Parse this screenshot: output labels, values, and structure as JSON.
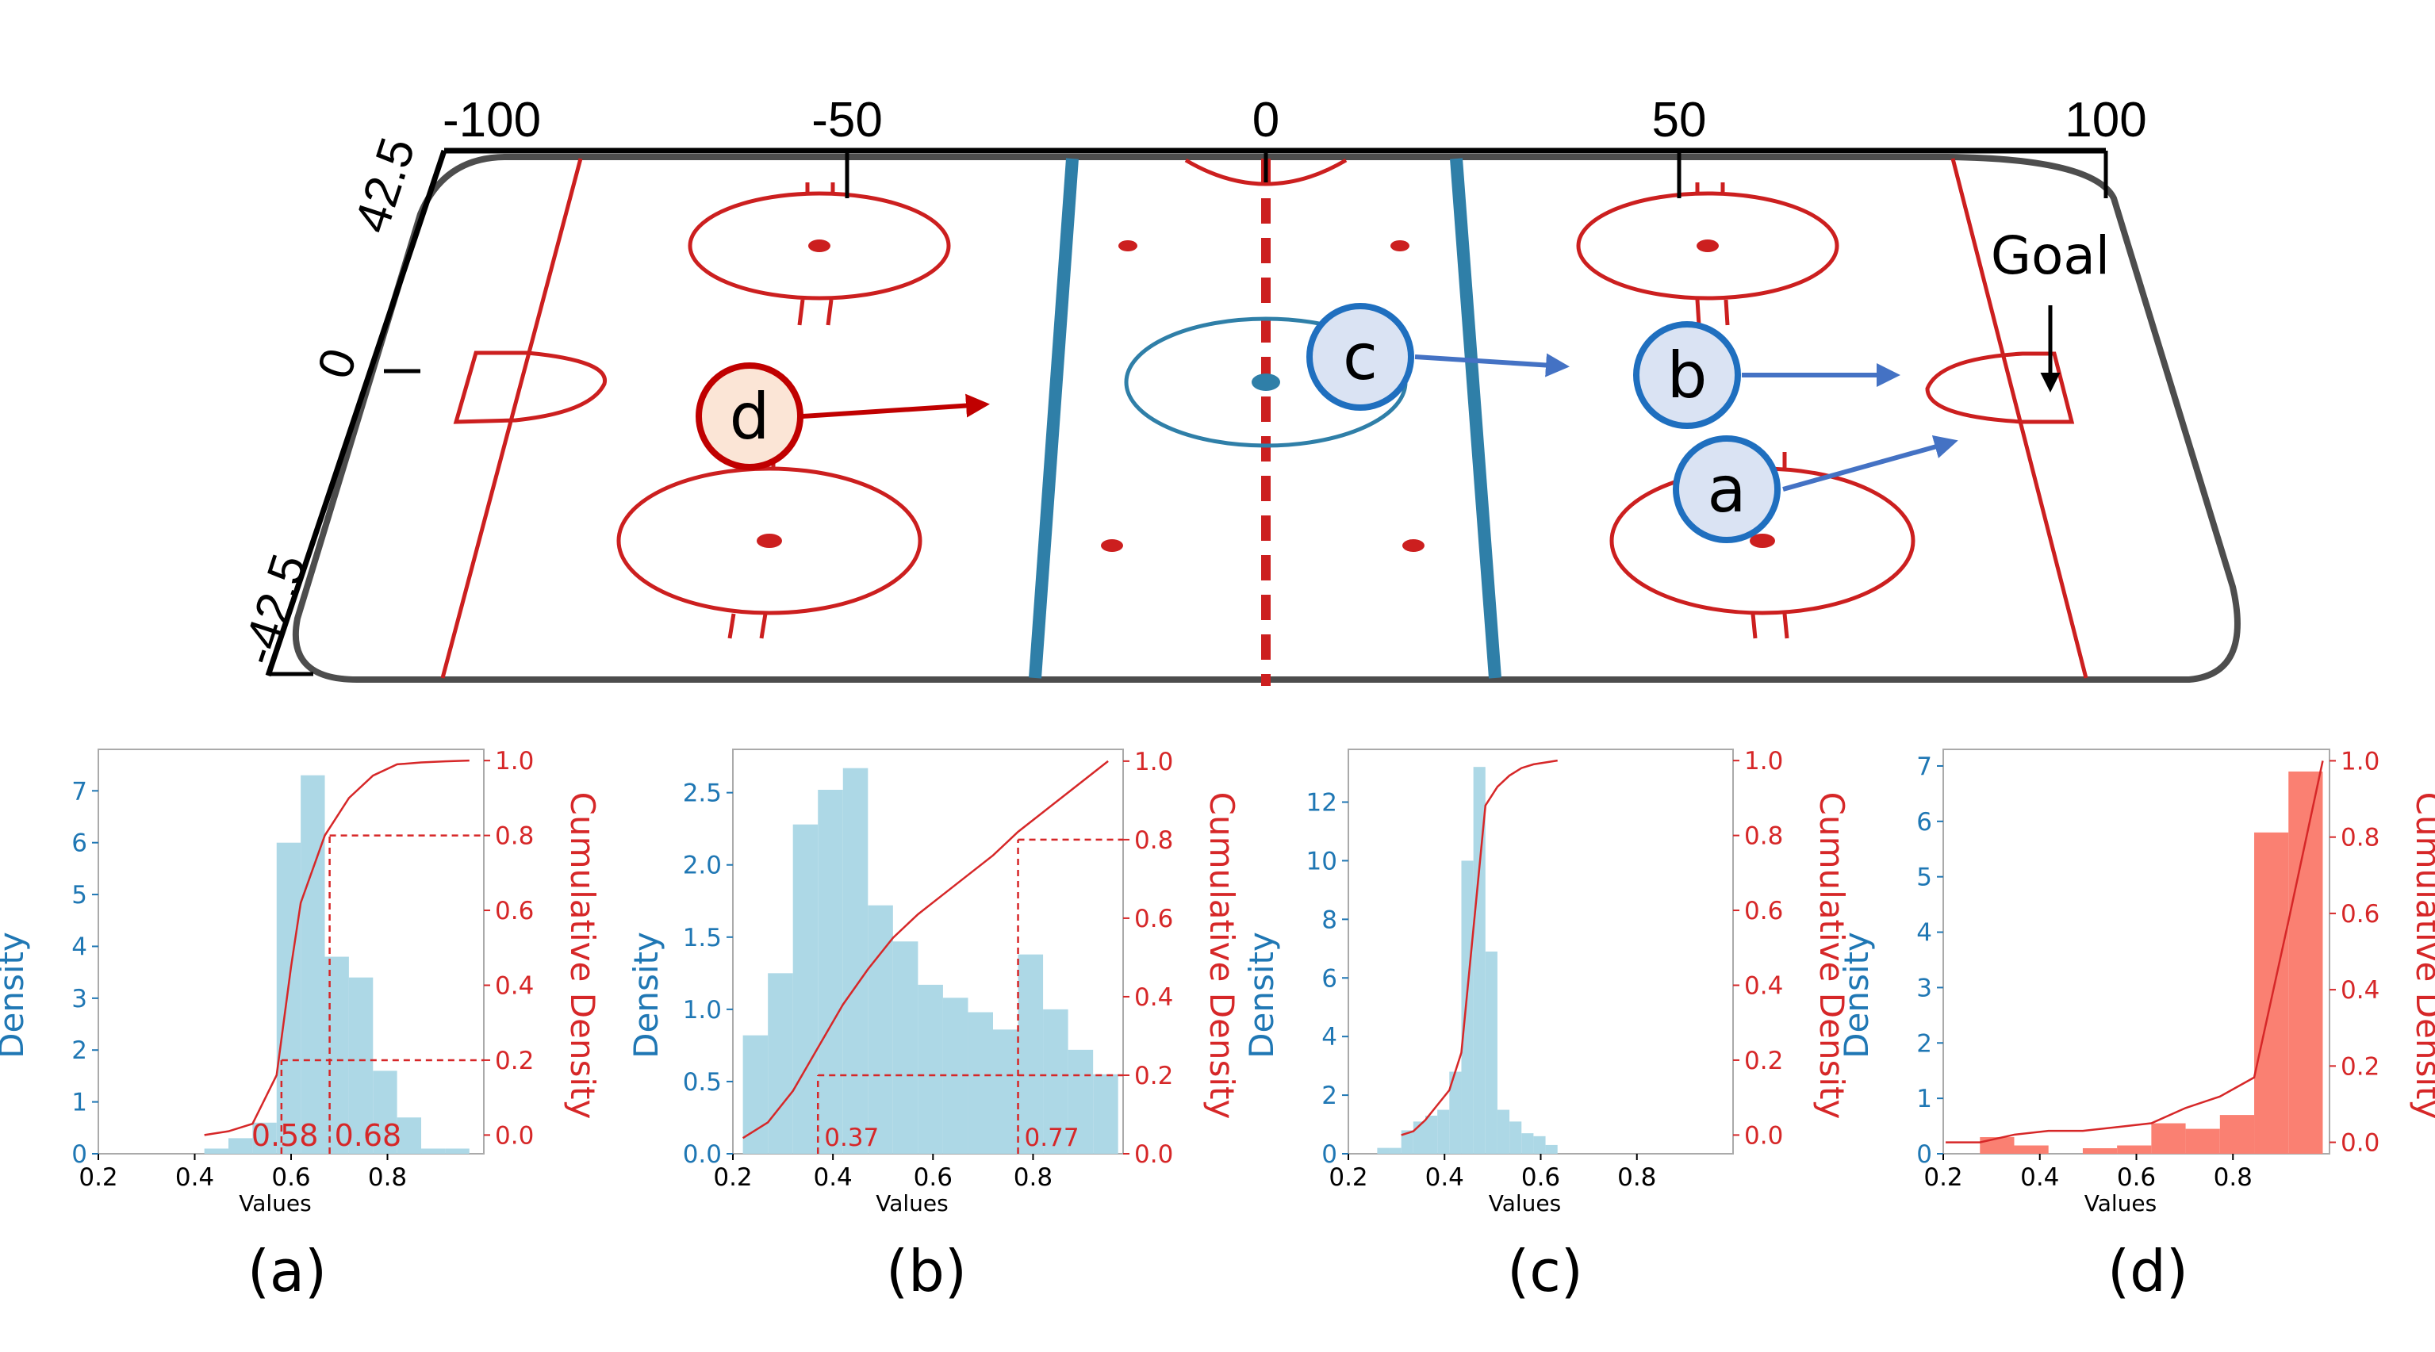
{
  "colors": {
    "rink_red": "#cc1f1f",
    "blue_line": "#2f7fa8",
    "marker_blue_fill": "#dae3f3",
    "marker_blue_stroke": "#1f6fbf",
    "marker_red_fill": "#fbe5d6",
    "marker_red_stroke": "#c00000",
    "hist_blue": "#add8e6",
    "hist_red": "#fa8072",
    "density_axis": "#1f77b4",
    "cdf_line": "#d62728",
    "board": "#4d4d4d"
  },
  "rink": {
    "x_ticks": [
      "-100",
      "-50",
      "0",
      "50",
      "100"
    ],
    "y_ticks": [
      "42.5",
      "0",
      "-42.5"
    ],
    "goal_label": "Goal",
    "markers": [
      {
        "letter": "a",
        "style": "blue"
      },
      {
        "letter": "b",
        "style": "blue"
      },
      {
        "letter": "c",
        "style": "blue"
      },
      {
        "letter": "d",
        "style": "red"
      }
    ]
  },
  "chart_data": [
    {
      "type": "bar",
      "caption": "(a)",
      "bar_color": "hist_blue",
      "xlabel": "Values",
      "ylabel_left": "Density",
      "ylabel_right": "Cumulative Density",
      "xlim": [
        0.2,
        1.0
      ],
      "ylim": [
        0,
        7.8
      ],
      "y2lim": [
        -0.05,
        1.03
      ],
      "x_ticks": [
        0.2,
        0.4,
        0.6,
        0.8
      ],
      "y_ticks": [
        0,
        1,
        2,
        3,
        4,
        5,
        6,
        7
      ],
      "y2_ticks": [
        0.0,
        0.2,
        0.4,
        0.6,
        0.8,
        1.0
      ],
      "bins": [
        0.42,
        0.47,
        0.52,
        0.57,
        0.62,
        0.67,
        0.72,
        0.77,
        0.82,
        0.87,
        0.92,
        0.97
      ],
      "density": [
        0.1,
        0.3,
        0.6,
        6.0,
        7.3,
        3.8,
        3.4,
        1.6,
        0.7,
        0.1,
        0.1,
        0.2
      ],
      "cdf": {
        "x": [
          0.42,
          0.47,
          0.52,
          0.57,
          0.6,
          0.62,
          0.67,
          0.72,
          0.77,
          0.82,
          0.87,
          0.92,
          0.97
        ],
        "y": [
          0.0,
          0.01,
          0.03,
          0.16,
          0.45,
          0.62,
          0.8,
          0.9,
          0.96,
          0.99,
          0.995,
          0.998,
          1.0
        ]
      },
      "quantile_lines": [
        {
          "q": 0.2,
          "x": 0.58,
          "label": "0.58"
        },
        {
          "q": 0.8,
          "x": 0.68,
          "label": "0.68"
        }
      ]
    },
    {
      "type": "bar",
      "caption": "(b)",
      "bar_color": "hist_blue",
      "xlabel": "Values",
      "ylabel_left": "Density",
      "ylabel_right": "Cumulative Density",
      "xlim": [
        0.2,
        0.98
      ],
      "ylim": [
        0,
        2.8
      ],
      "y2lim": [
        0,
        1.03
      ],
      "x_ticks": [
        0.2,
        0.4,
        0.6,
        0.8
      ],
      "y_ticks": [
        0.0,
        0.5,
        1.0,
        1.5,
        2.0,
        2.5
      ],
      "y2_ticks": [
        0.0,
        0.2,
        0.4,
        0.6,
        0.8,
        1.0
      ],
      "bins": [
        0.22,
        0.27,
        0.32,
        0.37,
        0.42,
        0.47,
        0.52,
        0.57,
        0.62,
        0.67,
        0.72,
        0.77,
        0.82,
        0.87,
        0.92,
        0.97
      ],
      "density": [
        0.82,
        1.25,
        2.28,
        2.52,
        2.67,
        1.72,
        1.47,
        1.17,
        1.08,
        0.98,
        0.86,
        1.38,
        1.0,
        0.72,
        0.55
      ],
      "cdf": {
        "x": [
          0.22,
          0.27,
          0.32,
          0.37,
          0.42,
          0.47,
          0.52,
          0.57,
          0.62,
          0.67,
          0.72,
          0.77,
          0.82,
          0.87,
          0.92,
          0.95
        ],
        "y": [
          0.04,
          0.08,
          0.16,
          0.27,
          0.38,
          0.47,
          0.55,
          0.61,
          0.66,
          0.71,
          0.76,
          0.82,
          0.87,
          0.92,
          0.97,
          1.0
        ]
      },
      "quantile_lines": [
        {
          "q": 0.2,
          "x": 0.37,
          "label": "0.37"
        },
        {
          "q": 0.8,
          "x": 0.77,
          "label": "0.77"
        }
      ]
    },
    {
      "type": "bar",
      "caption": "(c)",
      "bar_color": "hist_blue",
      "xlabel": "Values",
      "ylabel_left": "Density",
      "ylabel_right": "Cumulative Density",
      "xlim": [
        0.2,
        1.0
      ],
      "ylim": [
        0,
        13.8
      ],
      "y2lim": [
        -0.05,
        1.03
      ],
      "x_ticks": [
        0.2,
        0.4,
        0.6,
        0.8
      ],
      "y_ticks": [
        0,
        2,
        4,
        6,
        8,
        10,
        12
      ],
      "y2_ticks": [
        0.0,
        0.2,
        0.4,
        0.6,
        0.8,
        1.0
      ],
      "bins": [
        0.26,
        0.285,
        0.31,
        0.335,
        0.36,
        0.385,
        0.41,
        0.435,
        0.46,
        0.485,
        0.51,
        0.535,
        0.56,
        0.585,
        0.61,
        0.635
      ],
      "density": [
        0.2,
        0.2,
        0.8,
        1.1,
        1.3,
        1.5,
        2.8,
        10.0,
        13.2,
        6.9,
        1.5,
        1.1,
        0.7,
        0.6,
        0.3
      ],
      "cdf": {
        "x": [
          0.31,
          0.335,
          0.36,
          0.385,
          0.41,
          0.435,
          0.46,
          0.485,
          0.51,
          0.535,
          0.56,
          0.585,
          0.61,
          0.635
        ],
        "y": [
          0.0,
          0.01,
          0.04,
          0.08,
          0.12,
          0.22,
          0.55,
          0.88,
          0.93,
          0.96,
          0.98,
          0.99,
          0.995,
          1.0
        ]
      },
      "quantile_lines": []
    },
    {
      "type": "bar",
      "caption": "(d)",
      "bar_color": "hist_red",
      "xlabel": "Values",
      "ylabel_left": "Density",
      "ylabel_right": "Cumulative Density",
      "xlim": [
        0.2,
        1.0
      ],
      "ylim": [
        0,
        7.3
      ],
      "y2lim": [
        -0.03,
        1.03
      ],
      "x_ticks": [
        0.2,
        0.4,
        0.6,
        0.8
      ],
      "y_ticks": [
        0,
        1,
        2,
        3,
        4,
        5,
        6,
        7
      ],
      "y2_ticks": [
        0.0,
        0.2,
        0.4,
        0.6,
        0.8,
        1.0
      ],
      "bins": [
        0.205,
        0.276,
        0.347,
        0.418,
        0.489,
        0.56,
        0.631,
        0.702,
        0.773,
        0.844,
        0.915,
        0.986
      ],
      "density": [
        0.0,
        0.3,
        0.15,
        0.0,
        0.1,
        0.15,
        0.55,
        0.45,
        0.7,
        5.8,
        6.9
      ],
      "cdf": {
        "x": [
          0.205,
          0.276,
          0.347,
          0.418,
          0.489,
          0.56,
          0.631,
          0.702,
          0.773,
          0.844,
          0.915,
          0.986
        ],
        "y": [
          0.0,
          0.0,
          0.02,
          0.03,
          0.03,
          0.04,
          0.05,
          0.09,
          0.12,
          0.17,
          0.58,
          1.0
        ]
      },
      "quantile_lines": []
    }
  ]
}
